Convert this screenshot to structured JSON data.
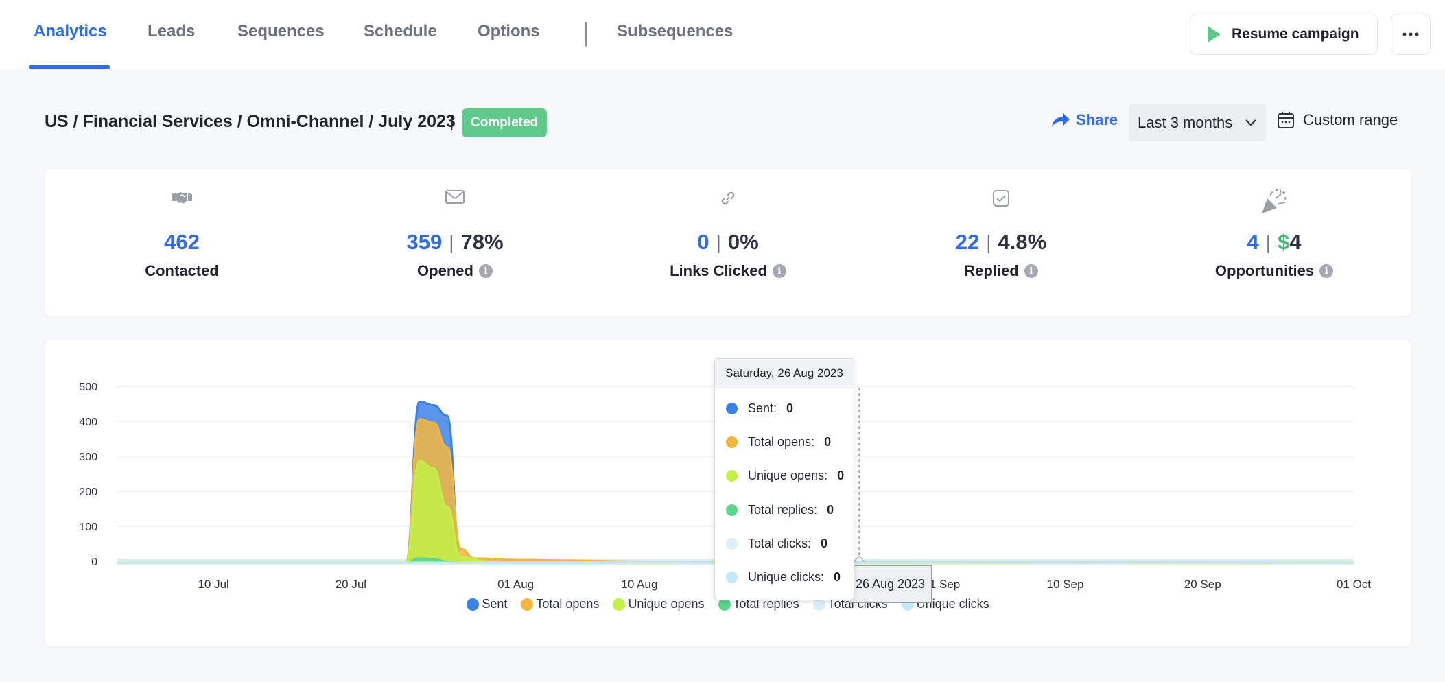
{
  "nav": {
    "tabs": [
      {
        "label": "Analytics",
        "active": true
      },
      {
        "label": "Leads"
      },
      {
        "label": "Sequences"
      },
      {
        "label": "Schedule"
      },
      {
        "label": "Options"
      },
      {
        "label": "Subsequences"
      }
    ],
    "resume_label": "Resume campaign",
    "more_icon": "ellipsis-icon"
  },
  "header": {
    "title": "US / Financial Services / Omni-Channel / July 2023",
    "separator": "|",
    "status": "Completed",
    "share_label": "Share",
    "range_value": "Last 3 months",
    "custom_range_label": "Custom range"
  },
  "stats": [
    {
      "icon": "handshake-icon",
      "value": "462",
      "label": "Contacted"
    },
    {
      "icon": "envelope-icon",
      "value": "359",
      "sep": "|",
      "secondary": "78%",
      "label": "Opened",
      "info": "i"
    },
    {
      "icon": "link-icon",
      "value": "0",
      "sep": "|",
      "secondary": "0%",
      "label": "Links Clicked",
      "info": "i"
    },
    {
      "icon": "checkbox-icon",
      "value": "22",
      "sep": "|",
      "secondary": "4.8%",
      "label": "Replied",
      "info": "i"
    },
    {
      "icon": "party-popper-icon",
      "value": "4",
      "sep": "|",
      "currency": "$",
      "secondary": "4",
      "label": "Opportunities",
      "info": "i"
    }
  ],
  "colors": {
    "sent": "#3b82e8",
    "total_opens": "#f3b63d",
    "unique_opens": "#c2f046",
    "total_replies": "#5cd68c",
    "total_clicks": "#dcf0fa",
    "unique_clicks": "#c3e9f7",
    "accent": "#2f6bf0",
    "badge": "#5fc98c"
  },
  "tooltip": {
    "date": "Saturday, 26 Aug 2023",
    "rows": [
      {
        "label": "Sent:",
        "value": "0"
      },
      {
        "label": "Total opens:",
        "value": "0"
      },
      {
        "label": "Unique opens:",
        "value": "0"
      },
      {
        "label": "Total replies:",
        "value": "0"
      },
      {
        "label": "Total clicks:",
        "value": "0"
      },
      {
        "label": "Unique clicks:",
        "value": "0"
      }
    ],
    "x_label": "26 Aug 2023"
  },
  "chart_data": {
    "type": "area",
    "x_start": "2023-07-03",
    "x_end": "2023-10-01",
    "ylim": [
      0,
      500
    ],
    "y_ticks": [
      0,
      100,
      200,
      300,
      400,
      500
    ],
    "x_ticks": [
      {
        "label": "10 Jul",
        "date": "2023-07-10"
      },
      {
        "label": "20 Jul",
        "date": "2023-07-20"
      },
      {
        "label": "01 Aug",
        "date": "2023-08-01"
      },
      {
        "label": "10 Aug",
        "date": "2023-08-10"
      },
      {
        "label": "01 Sep",
        "date": "2023-09-01"
      },
      {
        "label": "10 Sep",
        "date": "2023-09-10"
      },
      {
        "label": "20 Sep",
        "date": "2023-09-20"
      },
      {
        "label": "01 Oct",
        "date": "2023-10-01"
      }
    ],
    "legend": [
      "Sent",
      "Total opens",
      "Unique opens",
      "Total replies",
      "Total clicks",
      "Unique clicks"
    ],
    "series": [
      {
        "name": "Sent",
        "color": "#3b82e8",
        "points": [
          [
            "2023-07-03",
            0
          ],
          [
            "2023-07-24",
            0
          ],
          [
            "2023-07-25",
            460
          ],
          [
            "2023-07-26",
            450
          ],
          [
            "2023-07-27",
            420
          ],
          [
            "2023-07-28",
            0
          ],
          [
            "2023-10-01",
            0
          ]
        ]
      },
      {
        "name": "Total opens",
        "color": "#f3b63d",
        "points": [
          [
            "2023-07-03",
            0
          ],
          [
            "2023-07-24",
            0
          ],
          [
            "2023-07-25",
            410
          ],
          [
            "2023-07-26",
            400
          ],
          [
            "2023-07-27",
            330
          ],
          [
            "2023-07-28",
            40
          ],
          [
            "2023-07-29",
            12
          ],
          [
            "2023-08-01",
            8
          ],
          [
            "2023-08-05",
            6
          ],
          [
            "2023-08-10",
            3
          ],
          [
            "2023-08-20",
            1
          ],
          [
            "2023-10-01",
            0
          ]
        ]
      },
      {
        "name": "Unique opens",
        "color": "#c2f046",
        "points": [
          [
            "2023-07-03",
            0
          ],
          [
            "2023-07-24",
            0
          ],
          [
            "2023-07-25",
            290
          ],
          [
            "2023-07-26",
            270
          ],
          [
            "2023-07-27",
            160
          ],
          [
            "2023-07-28",
            15
          ],
          [
            "2023-07-30",
            3
          ],
          [
            "2023-10-01",
            0
          ]
        ]
      },
      {
        "name": "Total replies",
        "color": "#5cd68c",
        "points": [
          [
            "2023-07-03",
            0
          ],
          [
            "2023-07-24",
            0
          ],
          [
            "2023-07-25",
            12
          ],
          [
            "2023-07-26",
            10
          ],
          [
            "2023-07-27",
            3
          ],
          [
            "2023-07-28",
            0
          ],
          [
            "2023-10-01",
            0
          ]
        ]
      },
      {
        "name": "Total clicks",
        "color": "#dcf0fa",
        "points": [
          [
            "2023-07-03",
            0
          ],
          [
            "2023-10-01",
            0
          ]
        ]
      },
      {
        "name": "Unique clicks",
        "color": "#c3e9f7",
        "points": [
          [
            "2023-07-03",
            0
          ],
          [
            "2023-10-01",
            0
          ]
        ]
      }
    ],
    "crosshair_date": "2023-08-26"
  }
}
